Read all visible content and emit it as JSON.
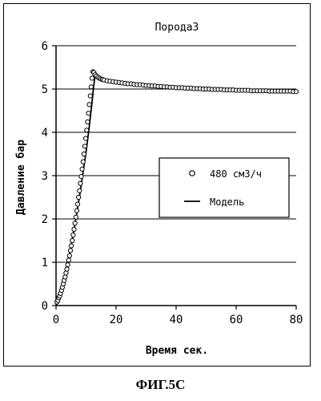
{
  "chart_data": {
    "type": "scatter",
    "title": "Порода3",
    "xlabel": "Время сек.",
    "ylabel": "Давление бар",
    "xlim": [
      0,
      80
    ],
    "ylim": [
      0,
      6
    ],
    "x_ticks": [
      "0",
      "20",
      "40",
      "60",
      "80"
    ],
    "y_ticks": [
      "0",
      "1",
      "2",
      "3",
      "4",
      "5",
      "6"
    ],
    "grid": "horizontal",
    "legend_position": "right-middle",
    "series": [
      {
        "name": "480 см3/ч",
        "style": "open-circle-markers",
        "x": [
          0.3,
          0.6,
          0.9,
          1.2,
          1.5,
          1.8,
          2.1,
          2.4,
          2.7,
          3.0,
          3.3,
          3.6,
          3.9,
          4.2,
          4.5,
          4.8,
          5.1,
          5.4,
          5.7,
          6.0,
          6.3,
          6.6,
          6.9,
          7.2,
          7.5,
          7.8,
          8.1,
          8.4,
          8.7,
          9.0,
          9.3,
          9.6,
          9.9,
          10.2,
          10.5,
          10.8,
          11.1,
          11.4,
          11.7,
          12.0,
          12.3,
          12.6,
          13.0,
          13.5,
          14.0,
          14.5,
          15.0,
          15.5,
          16.0,
          17.0,
          18.0,
          19.0,
          20.0,
          21.0,
          22.0,
          23.0,
          24.0,
          25.0,
          26.0,
          27.0,
          28.0,
          29.0,
          30.0,
          31.0,
          32.0,
          33.0,
          34.0,
          35.0,
          36.0,
          37.0,
          38.0,
          39.0,
          40.0,
          41.0,
          42.0,
          43.0,
          44.0,
          45.0,
          46.0,
          47.0,
          48.0,
          49.0,
          50.0,
          51.0,
          52.0,
          53.0,
          54.0,
          55.0,
          56.0,
          57.0,
          58.0,
          59.0,
          60.0,
          61.0,
          62.0,
          63.0,
          64.0,
          65.0,
          66.0,
          67.0,
          68.0,
          69.0,
          70.0,
          71.0,
          72.0,
          73.0,
          74.0,
          75.0,
          76.0,
          77.0,
          78.0,
          79.0,
          80.0
        ],
        "y": [
          0.08,
          0.12,
          0.18,
          0.22,
          0.28,
          0.35,
          0.42,
          0.5,
          0.58,
          0.66,
          0.75,
          0.84,
          0.94,
          1.05,
          1.15,
          1.27,
          1.38,
          1.5,
          1.63,
          1.76,
          1.9,
          2.04,
          2.19,
          2.34,
          2.5,
          2.65,
          2.82,
          2.98,
          3.15,
          3.32,
          3.5,
          3.68,
          3.86,
          4.05,
          4.24,
          4.44,
          4.64,
          4.84,
          5.05,
          5.25,
          5.4,
          5.38,
          5.33,
          5.3,
          5.27,
          5.25,
          5.23,
          5.22,
          5.21,
          5.19,
          5.18,
          5.17,
          5.16,
          5.15,
          5.14,
          5.13,
          5.12,
          5.12,
          5.11,
          5.1,
          5.1,
          5.09,
          5.08,
          5.08,
          5.07,
          5.07,
          5.06,
          5.06,
          5.05,
          5.05,
          5.04,
          5.04,
          5.03,
          5.03,
          5.03,
          5.02,
          5.02,
          5.02,
          5.01,
          5.01,
          5.01,
          5.0,
          5.0,
          5.0,
          4.99,
          4.99,
          4.99,
          4.99,
          4.98,
          4.98,
          4.98,
          4.98,
          4.97,
          4.97,
          4.97,
          4.97,
          4.97,
          4.96,
          4.96,
          4.96,
          4.96,
          4.96,
          4.96,
          4.95,
          4.95,
          4.95,
          4.95,
          4.95,
          4.95,
          4.95,
          4.95,
          4.94,
          4.94
        ]
      },
      {
        "name": "Модель",
        "style": "solid-line",
        "x": [
          0,
          2,
          4,
          6,
          8,
          10,
          11,
          12,
          12.5,
          13,
          15,
          20,
          30,
          40,
          50,
          60,
          70,
          80
        ],
        "y": [
          0,
          0.4,
          1.0,
          1.75,
          2.6,
          3.55,
          4.1,
          4.7,
          5.05,
          5.3,
          5.25,
          5.17,
          5.08,
          5.03,
          5.0,
          4.97,
          4.96,
          4.95
        ]
      }
    ]
  },
  "caption": "ФИГ.5С"
}
